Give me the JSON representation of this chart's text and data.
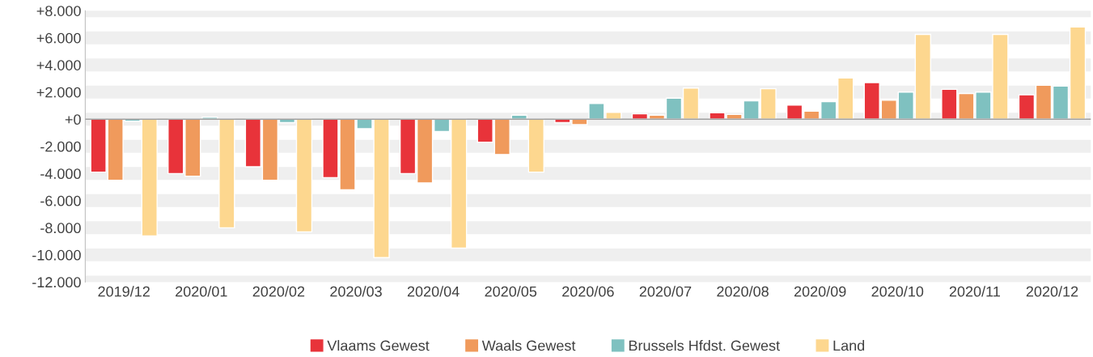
{
  "chart_data": {
    "type": "bar",
    "categories": [
      "2019/12",
      "2020/01",
      "2020/02",
      "2020/03",
      "2020/04",
      "2020/05",
      "2020/06",
      "2020/07",
      "2020/08",
      "2020/09",
      "2020/10",
      "2020/11",
      "2020/12"
    ],
    "series": [
      {
        "name": "Vlaams Gewest",
        "color": "#e8333a",
        "values": [
          -3900,
          -4000,
          -3500,
          -4300,
          -4000,
          -1700,
          -250,
          400,
          480,
          1050,
          2700,
          2200,
          1800
        ]
      },
      {
        "name": "Waals Gewest",
        "color": "#f09a5c",
        "values": [
          -4500,
          -4200,
          -4500,
          -5200,
          -4700,
          -2600,
          -400,
          300,
          350,
          600,
          1400,
          1900,
          2500
        ]
      },
      {
        "name": "Brussels Hfdst. Gewest",
        "color": "#7fc1c0",
        "values": [
          -150,
          150,
          -250,
          -700,
          -900,
          300,
          1170,
          1550,
          1350,
          1300,
          2000,
          2000,
          2450
        ]
      },
      {
        "name": "Land",
        "color": "#fdd78f",
        "values": [
          -8600,
          -8000,
          -8300,
          -10200,
          -9500,
          -3900,
          500,
          2300,
          2250,
          3050,
          6250,
          6250,
          6800
        ]
      }
    ],
    "ylim": [
      -12000,
      8000
    ],
    "yticks": [
      {
        "value": 8000,
        "label": "+8.000"
      },
      {
        "value": 6000,
        "label": "+6.000"
      },
      {
        "value": 4000,
        "label": "+4.000"
      },
      {
        "value": 2000,
        "label": "+2.000"
      },
      {
        "value": 0,
        "label": "+0"
      },
      {
        "value": -2000,
        "label": "-2.000"
      },
      {
        "value": -4000,
        "label": "-4.000"
      },
      {
        "value": -6000,
        "label": "-6.000"
      },
      {
        "value": -8000,
        "label": "-8.000"
      },
      {
        "value": -10000,
        "label": "-10.000"
      },
      {
        "value": -12000,
        "label": "-12.000"
      }
    ],
    "grid": "y",
    "legend": "bottom"
  }
}
